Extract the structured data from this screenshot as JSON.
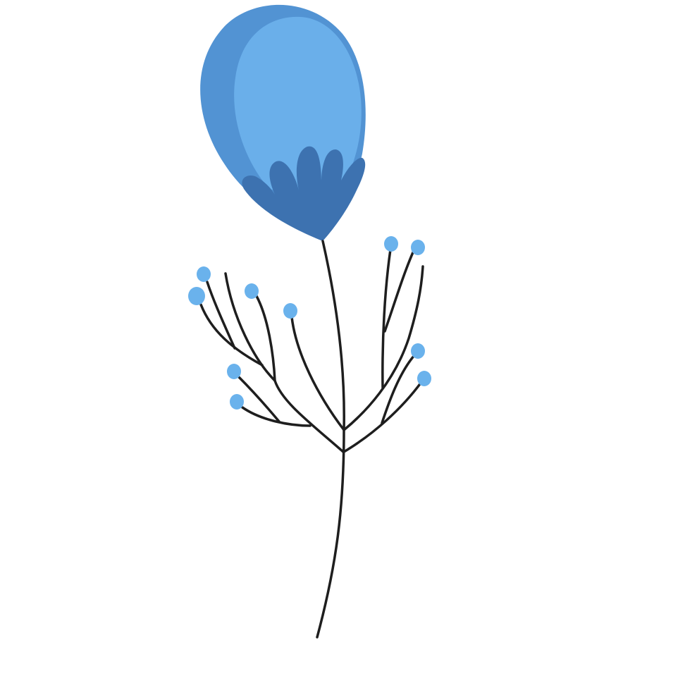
{
  "illustration": {
    "subject": "flower-icon",
    "colors": {
      "background": "#ffffff",
      "petal_outer": "#5293d3",
      "petal_inner": "#6aafea",
      "sepal": "#3d72b0",
      "stem": "#1e1e1e",
      "berry": "#6ab2ec"
    }
  }
}
